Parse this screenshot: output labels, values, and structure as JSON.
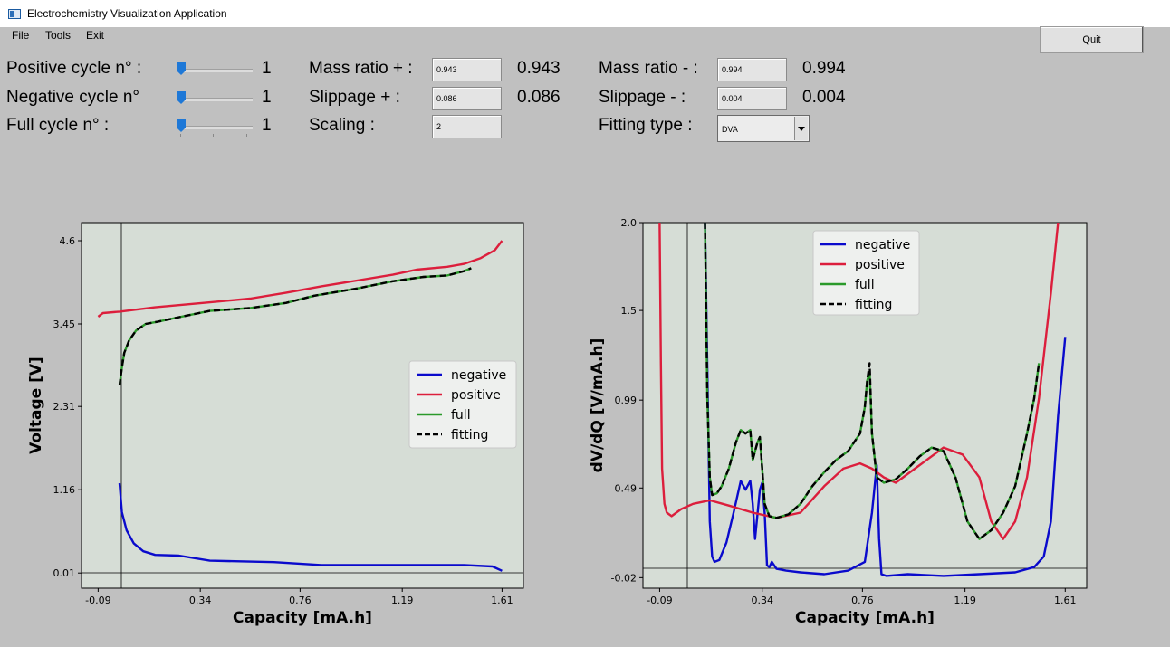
{
  "window": {
    "title": "Electrochemistry Visualization Application",
    "icon": "app-window-icon"
  },
  "menu": [
    "File",
    "Tools",
    "Exit"
  ],
  "quit_label": "Quit",
  "controls": {
    "positive_cycle": {
      "label": "Positive cycle n° :",
      "value": "1",
      "level": 0
    },
    "negative_cycle": {
      "label": "Negative cycle n°",
      "value": "1",
      "level": 0
    },
    "full_cycle": {
      "label": "Full cycle n° :",
      "value": "1",
      "level": 0
    },
    "mass_ratio_pos": {
      "label": "Mass ratio + :",
      "field": "0.943",
      "value": "0.943"
    },
    "slippage_pos": {
      "label": "Slippage + :",
      "field": "0.086",
      "value": "0.086"
    },
    "scaling": {
      "label": "Scaling :",
      "field": "2"
    },
    "mass_ratio_neg": {
      "label": "Mass ratio - :",
      "field": "0.994",
      "value": "0.994"
    },
    "slippage_neg": {
      "label": "Slippage - :",
      "field": "0.004",
      "value": "0.004"
    },
    "fitting_type": {
      "label": "Fitting type :",
      "selected": "DVA"
    }
  },
  "colors": {
    "negative": "#0a0acc",
    "positive": "#dc1e3c",
    "full": "#2a9a2a",
    "fitting": "#000000",
    "plot_bg": "#d6ddd6"
  },
  "chart_data": [
    {
      "type": "line",
      "xlabel": "Capacity [mA.h]",
      "ylabel": "Voltage [V]",
      "xticks": [
        "-0.09",
        "0.34",
        "0.76",
        "1.19",
        "1.61"
      ],
      "yticks": [
        "0.01",
        "1.16",
        "2.31",
        "3.45",
        "4.6"
      ],
      "xlim": [
        -0.16,
        1.7
      ],
      "ylim": [
        -0.2,
        4.85
      ],
      "grid": false,
      "legend": "center-right",
      "series": [
        {
          "name": "negative",
          "style": "solid",
          "x": [
            0.0,
            0.01,
            0.03,
            0.06,
            0.1,
            0.15,
            0.25,
            0.38,
            0.65,
            0.85,
            1.2,
            1.45,
            1.57,
            1.61
          ],
          "y": [
            1.25,
            0.85,
            0.6,
            0.42,
            0.31,
            0.26,
            0.25,
            0.18,
            0.16,
            0.12,
            0.12,
            0.12,
            0.1,
            0.04
          ]
        },
        {
          "name": "positive",
          "style": "solid",
          "x": [
            -0.09,
            -0.07,
            0.0,
            0.15,
            0.35,
            0.55,
            0.7,
            0.85,
            1.0,
            1.15,
            1.25,
            1.38,
            1.45,
            1.52,
            1.58,
            1.61
          ],
          "y": [
            3.55,
            3.6,
            3.62,
            3.68,
            3.74,
            3.8,
            3.88,
            3.97,
            4.05,
            4.13,
            4.2,
            4.24,
            4.28,
            4.36,
            4.47,
            4.6
          ]
        },
        {
          "name": "full",
          "style": "solid",
          "x": [
            0.0,
            0.01,
            0.02,
            0.04,
            0.07,
            0.11,
            0.16,
            0.26,
            0.38,
            0.55,
            0.7,
            0.82,
            1.0,
            1.15,
            1.28,
            1.38,
            1.45,
            1.48
          ],
          "y": [
            2.6,
            2.85,
            3.05,
            3.22,
            3.36,
            3.45,
            3.48,
            3.55,
            3.63,
            3.67,
            3.74,
            3.84,
            3.94,
            4.04,
            4.1,
            4.12,
            4.18,
            4.22
          ]
        },
        {
          "name": "fitting",
          "style": "dashed",
          "x": [
            0.0,
            0.01,
            0.02,
            0.04,
            0.07,
            0.11,
            0.16,
            0.26,
            0.38,
            0.55,
            0.7,
            0.82,
            1.0,
            1.15,
            1.28,
            1.38,
            1.45,
            1.48
          ],
          "y": [
            2.6,
            2.85,
            3.05,
            3.22,
            3.36,
            3.45,
            3.48,
            3.55,
            3.63,
            3.67,
            3.74,
            3.84,
            3.94,
            4.04,
            4.1,
            4.12,
            4.18,
            4.22
          ]
        }
      ]
    },
    {
      "type": "line",
      "xlabel": "Capacity [mA.h]",
      "ylabel": "dV/dQ [V/mA.h]",
      "xticks": [
        "-0.09",
        "0.34",
        "0.76",
        "1.19",
        "1.61"
      ],
      "yticks": [
        "-0.02",
        "0.49",
        "0.99",
        "1.5",
        "2.0"
      ],
      "xlim": [
        -0.16,
        1.7
      ],
      "ylim": [
        -0.08,
        2.0
      ],
      "grid": false,
      "legend": "upper-center",
      "series": [
        {
          "name": "negative",
          "style": "solid",
          "x": [
            0.1,
            0.12,
            0.13,
            0.14,
            0.16,
            0.19,
            0.22,
            0.25,
            0.27,
            0.29,
            0.3,
            0.31,
            0.33,
            0.34,
            0.35,
            0.36,
            0.37,
            0.38,
            0.4,
            0.44,
            0.5,
            0.6,
            0.7,
            0.77,
            0.8,
            0.82,
            0.83,
            0.84,
            0.86,
            0.95,
            1.1,
            1.25,
            1.4,
            1.48,
            1.52,
            1.55,
            1.58,
            1.61
          ],
          "y": [
            2.0,
            0.3,
            0.1,
            0.07,
            0.08,
            0.18,
            0.35,
            0.53,
            0.48,
            0.53,
            0.4,
            0.2,
            0.48,
            0.52,
            0.35,
            0.05,
            0.04,
            0.07,
            0.03,
            0.02,
            0.01,
            0.0,
            0.02,
            0.07,
            0.35,
            0.62,
            0.2,
            0.0,
            -0.01,
            0.0,
            -0.01,
            0.0,
            0.01,
            0.04,
            0.1,
            0.3,
            0.9,
            1.35
          ]
        },
        {
          "name": "positive",
          "style": "solid",
          "x": [
            -0.09,
            -0.085,
            -0.08,
            -0.07,
            -0.06,
            -0.04,
            0.0,
            0.05,
            0.12,
            0.2,
            0.3,
            0.4,
            0.5,
            0.6,
            0.68,
            0.75,
            0.8,
            0.85,
            0.9,
            1.0,
            1.1,
            1.18,
            1.25,
            1.3,
            1.35,
            1.4,
            1.45,
            1.5,
            1.55,
            1.58
          ],
          "y": [
            2.0,
            1.2,
            0.6,
            0.4,
            0.35,
            0.33,
            0.37,
            0.4,
            0.42,
            0.39,
            0.35,
            0.32,
            0.35,
            0.5,
            0.6,
            0.63,
            0.6,
            0.55,
            0.52,
            0.62,
            0.72,
            0.68,
            0.55,
            0.3,
            0.2,
            0.3,
            0.55,
            1.0,
            1.6,
            2.0
          ]
        },
        {
          "name": "full",
          "style": "solid",
          "x": [
            0.1,
            0.11,
            0.12,
            0.13,
            0.15,
            0.17,
            0.2,
            0.23,
            0.25,
            0.27,
            0.29,
            0.3,
            0.31,
            0.32,
            0.33,
            0.34,
            0.35,
            0.37,
            0.4,
            0.45,
            0.5,
            0.55,
            0.6,
            0.65,
            0.7,
            0.75,
            0.77,
            0.78,
            0.79,
            0.8,
            0.82,
            0.85,
            0.9,
            0.95,
            1.0,
            1.05,
            1.1,
            1.15,
            1.2,
            1.25,
            1.3,
            1.35,
            1.4,
            1.45,
            1.48,
            1.5
          ],
          "y": [
            2.0,
            1.0,
            0.55,
            0.45,
            0.46,
            0.5,
            0.6,
            0.75,
            0.82,
            0.8,
            0.82,
            0.65,
            0.7,
            0.75,
            0.78,
            0.6,
            0.4,
            0.33,
            0.32,
            0.34,
            0.4,
            0.5,
            0.58,
            0.65,
            0.7,
            0.8,
            0.95,
            1.1,
            1.15,
            0.8,
            0.55,
            0.52,
            0.54,
            0.6,
            0.67,
            0.72,
            0.7,
            0.55,
            0.3,
            0.2,
            0.25,
            0.35,
            0.5,
            0.8,
            1.0,
            1.2
          ]
        },
        {
          "name": "fitting",
          "style": "dashed",
          "x": [
            0.1,
            0.11,
            0.12,
            0.13,
            0.15,
            0.17,
            0.2,
            0.23,
            0.25,
            0.27,
            0.29,
            0.3,
            0.31,
            0.32,
            0.33,
            0.34,
            0.35,
            0.37,
            0.4,
            0.45,
            0.5,
            0.55,
            0.6,
            0.65,
            0.7,
            0.75,
            0.77,
            0.78,
            0.79,
            0.8,
            0.82,
            0.85,
            0.9,
            0.95,
            1.0,
            1.05,
            1.1,
            1.15,
            1.2,
            1.25,
            1.3,
            1.35,
            1.4,
            1.45,
            1.48,
            1.5
          ],
          "y": [
            2.0,
            1.0,
            0.55,
            0.45,
            0.46,
            0.5,
            0.6,
            0.75,
            0.82,
            0.8,
            0.82,
            0.65,
            0.7,
            0.75,
            0.78,
            0.6,
            0.4,
            0.33,
            0.32,
            0.34,
            0.4,
            0.5,
            0.58,
            0.65,
            0.7,
            0.8,
            0.95,
            1.1,
            1.2,
            0.8,
            0.55,
            0.52,
            0.54,
            0.6,
            0.67,
            0.72,
            0.7,
            0.55,
            0.3,
            0.2,
            0.25,
            0.35,
            0.5,
            0.8,
            1.0,
            1.2
          ]
        }
      ]
    }
  ]
}
